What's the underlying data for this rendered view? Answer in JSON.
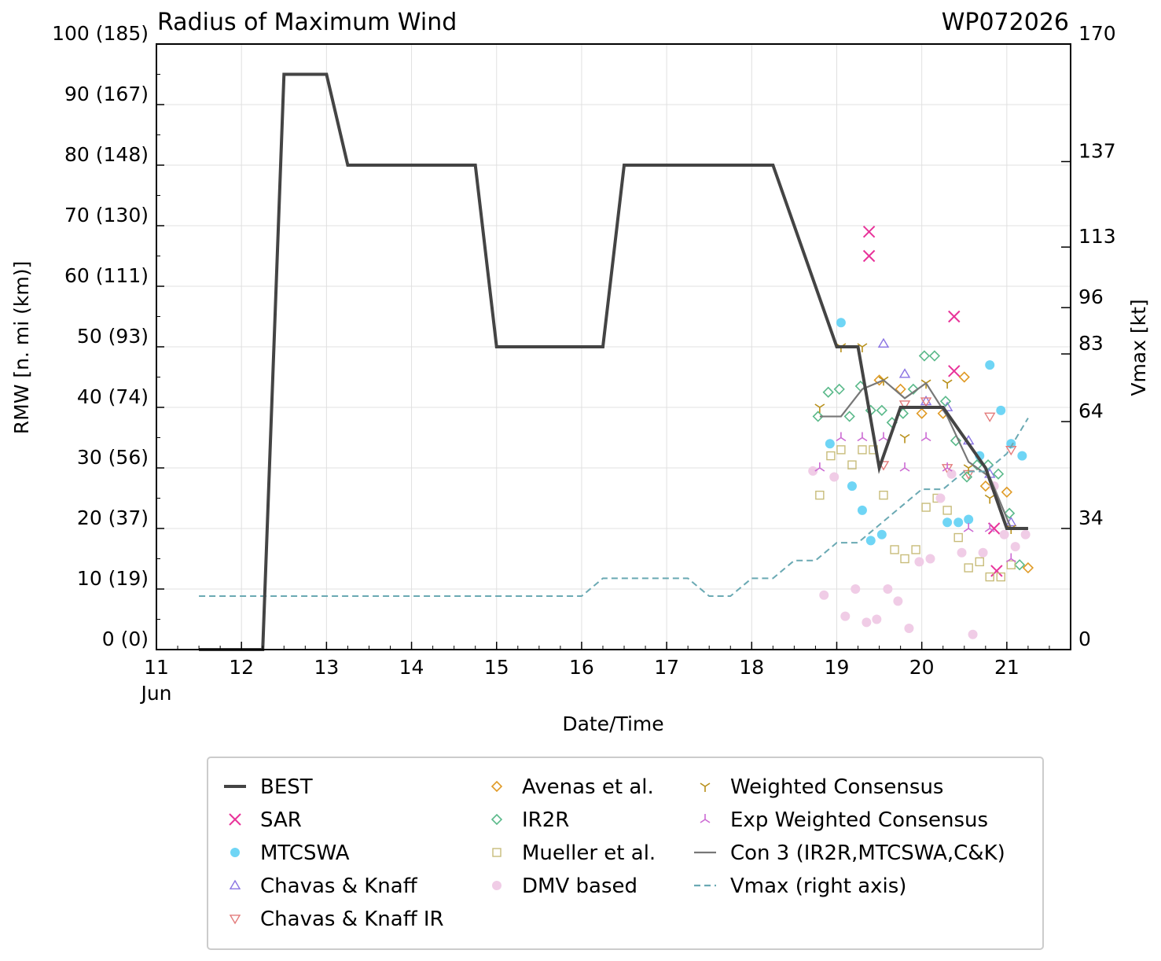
{
  "chart_data": {
    "type": "line",
    "title": "Radius of Maximum Wind",
    "storm_id": "WP072026",
    "xlabel": "Date/Time",
    "ylabel": "RMW [n. mi (km)]",
    "y2label": "Vmax [kt]",
    "x_unit": "day of June 2026",
    "xlim": [
      11,
      21.75
    ],
    "ylim": [
      0,
      100
    ],
    "y2lim": [
      0,
      170
    ],
    "x_ticks": [
      {
        "v": 11,
        "label": "11"
      },
      {
        "v": 12,
        "label": "12"
      },
      {
        "v": 13,
        "label": "13"
      },
      {
        "v": 14,
        "label": "14"
      },
      {
        "v": 15,
        "label": "15"
      },
      {
        "v": 16,
        "label": "16"
      },
      {
        "v": 17,
        "label": "17"
      },
      {
        "v": 18,
        "label": "18"
      },
      {
        "v": 19,
        "label": "19"
      },
      {
        "v": 20,
        "label": "20"
      },
      {
        "v": 21,
        "label": "21"
      }
    ],
    "x_month_label": "Jun",
    "y_ticks": [
      {
        "v": 0,
        "label": "0 (0)"
      },
      {
        "v": 10,
        "label": "10 (19)"
      },
      {
        "v": 20,
        "label": "20 (37)"
      },
      {
        "v": 30,
        "label": "30 (56)"
      },
      {
        "v": 40,
        "label": "40 (74)"
      },
      {
        "v": 50,
        "label": "50 (93)"
      },
      {
        "v": 60,
        "label": "60 (111)"
      },
      {
        "v": 70,
        "label": "70 (130)"
      },
      {
        "v": 80,
        "label": "80 (148)"
      },
      {
        "v": 90,
        "label": "90 (167)"
      },
      {
        "v": 100,
        "label": "100 (185)"
      }
    ],
    "y2_ticks": [
      {
        "v": 0,
        "label": "0"
      },
      {
        "v": 34,
        "label": "34"
      },
      {
        "v": 64,
        "label": "64"
      },
      {
        "v": 83,
        "label": "83"
      },
      {
        "v": 96,
        "label": "96"
      },
      {
        "v": 113,
        "label": "113"
      },
      {
        "v": 137,
        "label": "137"
      },
      {
        "v": 170,
        "label": "170"
      }
    ],
    "grid": true,
    "legend_position": "bottom",
    "series": [
      {
        "name": "BEST",
        "kind": "line",
        "color": "#444444",
        "x": [
          11.5,
          12.25,
          12.5,
          13.0,
          13.25,
          14.75,
          15.0,
          16.25,
          16.5,
          18.25,
          19.0,
          19.25,
          19.5,
          19.75,
          20.25,
          20.75,
          21.0,
          21.25
        ],
        "y": [
          0,
          0,
          95,
          95,
          80,
          80,
          50,
          50,
          80,
          80,
          50,
          50,
          30,
          40,
          40,
          30,
          20,
          20
        ]
      },
      {
        "name": "SAR",
        "kind": "scatter",
        "marker": "x",
        "color": "#e8339a",
        "x": [
          19.38,
          19.38,
          20.38,
          20.38,
          20.85,
          20.88
        ],
        "y": [
          69,
          65,
          55,
          46,
          20,
          13
        ]
      },
      {
        "name": "MTCSWA",
        "kind": "scatter",
        "marker": "dot",
        "color": "#6fd5f5",
        "x": [
          19.05,
          18.92,
          19.18,
          19.3,
          19.4,
          19.53,
          20.3,
          20.43,
          20.55,
          20.68,
          20.8,
          20.93,
          21.05,
          21.18
        ],
        "y": [
          54,
          34,
          27,
          23,
          18,
          19,
          21,
          21,
          21.5,
          32,
          47,
          39.5,
          34,
          32
        ]
      },
      {
        "name": "Chavas & Knaff",
        "kind": "scatter",
        "marker": "tri-up",
        "color": "#8a73e3",
        "x": [
          19.55,
          19.8,
          20.05,
          20.3,
          20.55,
          20.8,
          21.05
        ],
        "y": [
          50.5,
          45.5,
          41,
          40,
          34.5,
          29,
          21
        ]
      },
      {
        "name": "Chavas & Knaff IR",
        "kind": "scatter",
        "marker": "tri-down",
        "color": "#e37b7b",
        "x": [
          19.55,
          19.8,
          20.05,
          20.3,
          20.55,
          20.8,
          21.05
        ],
        "y": [
          30.5,
          40.5,
          41,
          30,
          29,
          38.5,
          33
        ]
      },
      {
        "name": "Avenas et al.",
        "kind": "scatter",
        "marker": "diamond",
        "color": "#e09a25",
        "x": [
          19.5,
          19.75,
          20.0,
          20.25,
          20.5,
          20.75,
          21.0,
          21.25
        ],
        "y": [
          44.5,
          43,
          39,
          39,
          45,
          27,
          26,
          13.5
        ]
      },
      {
        "name": "IR2R",
        "kind": "scatter",
        "marker": "diamond",
        "color": "#5ab98a",
        "x": [
          18.78,
          18.9,
          19.03,
          19.15,
          19.28,
          19.4,
          19.53,
          19.65,
          19.78,
          19.9,
          20.03,
          20.15,
          20.28,
          20.4,
          20.53,
          20.65,
          20.78,
          20.9,
          21.03,
          21.15
        ],
        "y": [
          38.5,
          42.5,
          43,
          38.5,
          43.5,
          39.5,
          39.5,
          37.5,
          39,
          43,
          48.5,
          48.5,
          41,
          34.5,
          28.5,
          30.5,
          30.5,
          29,
          22.5,
          14
        ]
      },
      {
        "name": "Mueller et al.",
        "kind": "scatter",
        "marker": "square",
        "color": "#c8bc7a",
        "x": [
          18.8,
          18.93,
          19.05,
          19.18,
          19.3,
          19.43,
          19.55,
          19.68,
          19.8,
          19.93,
          20.05,
          20.18,
          20.3,
          20.43,
          20.55,
          20.68,
          20.8,
          20.93,
          21.05
        ],
        "y": [
          25.5,
          32,
          33,
          30.5,
          33,
          33,
          25.5,
          16.5,
          15,
          16.5,
          23.5,
          25,
          23,
          18.5,
          13.5,
          14.5,
          12,
          12,
          14
        ]
      },
      {
        "name": "DMV based",
        "kind": "scatter",
        "marker": "dot",
        "color": "#f0cce6",
        "x": [
          18.72,
          18.85,
          18.97,
          19.1,
          19.22,
          19.35,
          19.47,
          19.6,
          19.72,
          19.85,
          19.97,
          20.1,
          20.22,
          20.35,
          20.47,
          20.6,
          20.72,
          20.85,
          20.97,
          21.1,
          21.22
        ],
        "y": [
          29.5,
          9,
          28.5,
          5.5,
          10,
          4.5,
          5,
          10,
          8,
          3.5,
          14.5,
          15,
          25,
          29,
          16,
          2.5,
          16,
          27,
          19,
          17,
          19
        ]
      },
      {
        "name": "Weighted Consensus",
        "kind": "scatter",
        "marker": "tri-y",
        "color": "#b8901a",
        "x": [
          18.8,
          19.05,
          19.3,
          19.55,
          19.8,
          20.05,
          20.3,
          20.55,
          20.8,
          21.05
        ],
        "y": [
          40,
          50,
          50,
          44.5,
          35,
          44,
          44,
          30,
          25,
          20
        ]
      },
      {
        "name": "Exp Weighted Consensus",
        "kind": "scatter",
        "marker": "tri-yinv",
        "color": "#cc6ad3",
        "x": [
          18.8,
          19.05,
          19.3,
          19.55,
          19.8,
          20.05,
          20.3,
          20.55,
          20.8,
          21.05
        ],
        "y": [
          30,
          35,
          35,
          35,
          30,
          35,
          30,
          20,
          20,
          15
        ]
      },
      {
        "name": "Con 3 (IR2R,MTCSWA,C&K)",
        "kind": "line",
        "color": "#777777",
        "x": [
          18.8,
          19.05,
          19.3,
          19.55,
          19.8,
          20.05,
          20.3,
          20.55,
          20.8,
          21.05,
          21.25
        ],
        "y": [
          38.5,
          38.5,
          43,
          44.5,
          41.5,
          44,
          38.5,
          31,
          28.5,
          20,
          20
        ]
      },
      {
        "name": "Vmax (right axis)",
        "kind": "line",
        "dashed": true,
        "color": "#6aa9b3",
        "axis": "right",
        "x": [
          11.5,
          16.0,
          16.25,
          17.25,
          17.5,
          17.75,
          18.0,
          18.25,
          18.5,
          18.75,
          19.0,
          19.25,
          19.5,
          19.75,
          20.0,
          20.25,
          20.5,
          20.75,
          21.0,
          21.25
        ],
        "y": [
          15,
          15,
          20,
          20,
          15,
          15,
          20,
          20,
          25,
          25,
          30,
          30,
          35,
          40,
          45,
          45,
          50,
          50,
          55,
          65
        ]
      }
    ]
  }
}
